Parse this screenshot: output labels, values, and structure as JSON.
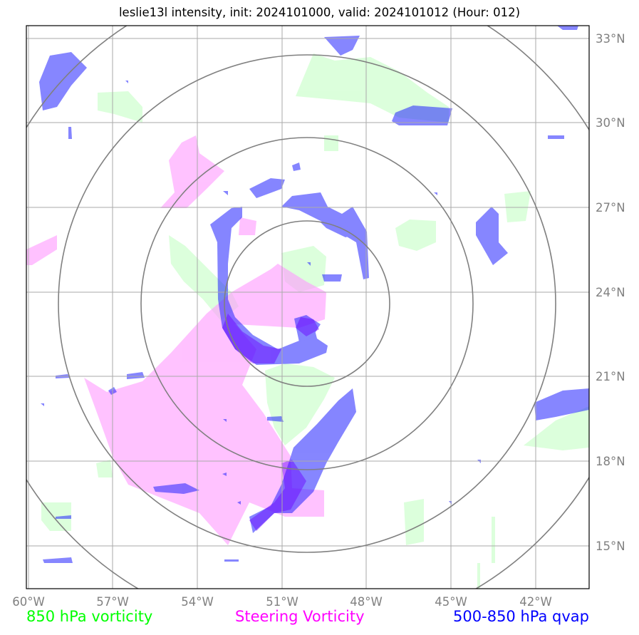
{
  "map": {
    "title": "leslie13l intensity, init: 2024101000, valid: 2024101012 (Hour: 012)",
    "extent": {
      "lon": [
        -60,
        -40.7
      ],
      "lat": [
        13.5,
        33.7
      ]
    },
    "lat_ticks": [
      "15°N",
      "18°N",
      "21°N",
      "24°N",
      "27°N",
      "30°N",
      "33°N"
    ],
    "lon_ticks": [
      "60°W",
      "57°W",
      "54°W",
      "51°W",
      "48°W",
      "45°W",
      "42°W"
    ],
    "range_rings_center": {
      "lon": -50.1,
      "lat": 23.5
    },
    "range_rings_count": 4,
    "colors": {
      "vort850": "#bfffbf",
      "steering": "#ff99ff",
      "qvap": "#0000ff",
      "grid": "#aaaaaa",
      "rings": "#808080"
    }
  },
  "legend": {
    "vort850": {
      "label": "850 hPa vorticity",
      "color": "#00ff00"
    },
    "steering": {
      "label": "Steering Vorticity",
      "color": "#ff00ff"
    },
    "qvap": {
      "label": "500-850 hPa qvap",
      "color": "#0000ff"
    }
  }
}
